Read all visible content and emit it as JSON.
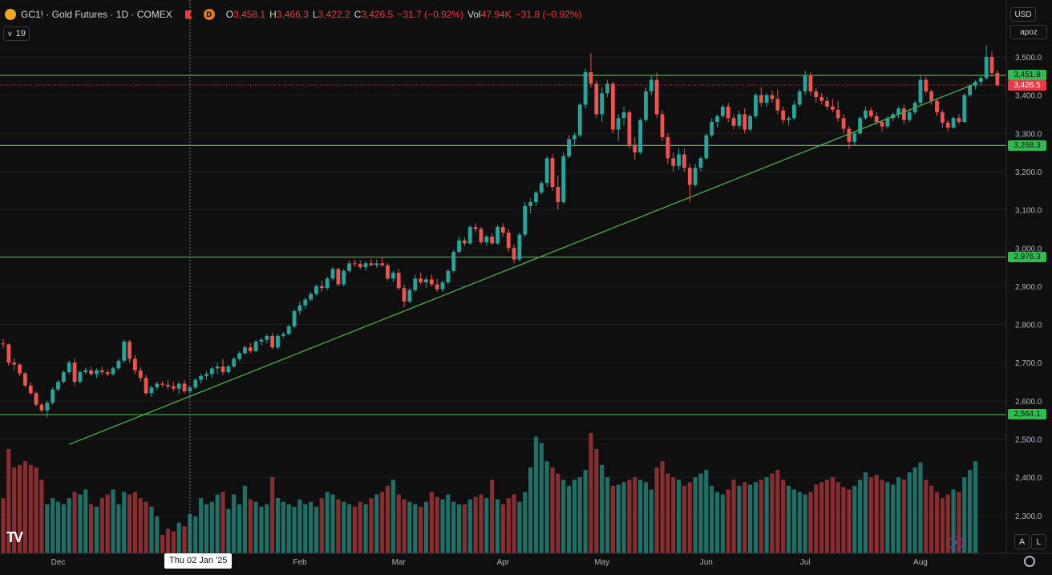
{
  "header": {
    "symbol": "GC1!",
    "name": "Gold Futures",
    "interval": "1D",
    "exchange": "COMEX",
    "title": "GC1! · Gold Futures · 1D · COMEX",
    "badge": "D",
    "ohlc": {
      "o_label": "O",
      "o": "3,458.1",
      "h_label": "H",
      "h": "3,466.3",
      "l_label": "L",
      "l": "3,422.2",
      "c_label": "C",
      "c": "3,426.5",
      "change": "−31.7 (−0.92%)",
      "vol_label": "Vol",
      "vol": "47.94K",
      "vol_change": "−31.8 (−0.92%)"
    },
    "indicators_count": "19"
  },
  "price_scale": {
    "currency": "USD",
    "mode": "apoz",
    "ticks": [
      {
        "label": "3,500.0",
        "value": 3500
      },
      {
        "label": "3,400.0",
        "value": 3400
      },
      {
        "label": "3,300.0",
        "value": 3300
      },
      {
        "label": "3,200.0",
        "value": 3200
      },
      {
        "label": "3,100.0",
        "value": 3100
      },
      {
        "label": "3,000.0",
        "value": 3000
      },
      {
        "label": "2,900.0",
        "value": 2900
      },
      {
        "label": "2,800.0",
        "value": 2800
      },
      {
        "label": "2,700.0",
        "value": 2700
      },
      {
        "label": "2,600.0",
        "value": 2600
      },
      {
        "label": "2,500.0",
        "value": 2500
      },
      {
        "label": "2,400.0",
        "value": 2400
      },
      {
        "label": "2,300.0",
        "value": 2300
      }
    ],
    "levels": [
      {
        "label": "3,451.8",
        "value": 3451.8
      },
      {
        "label": "3,268.3",
        "value": 3268.3
      },
      {
        "label": "2,976.3",
        "value": 2976.3
      },
      {
        "label": "2,564.1",
        "value": 2564.1
      }
    ],
    "last_price": {
      "label": "3,426.5",
      "value": 3426.5
    }
  },
  "time_axis": {
    "labels": [
      {
        "label": "Dec",
        "index": 10
      },
      {
        "label": "Feb",
        "index": 54
      },
      {
        "label": "Mar",
        "index": 72
      },
      {
        "label": "Apr",
        "index": 91
      },
      {
        "label": "May",
        "index": 109
      },
      {
        "label": "Jun",
        "index": 128
      },
      {
        "label": "Jul",
        "index": 146
      },
      {
        "label": "Aug",
        "index": 167
      }
    ],
    "crosshair_label": "Thu 02 Jan '25",
    "crosshair_index": 34
  },
  "trendline": {
    "start_index": 12,
    "start_value": 2486,
    "end_index": 177,
    "end_value": 3430
  },
  "chart_data": {
    "type": "candlestick",
    "candles": [
      [
        2750,
        2762,
        2738,
        2748
      ],
      [
        2748,
        2750,
        2692,
        2700
      ],
      [
        2700,
        2712,
        2680,
        2695
      ],
      [
        2695,
        2698,
        2665,
        2672
      ],
      [
        2672,
        2676,
        2635,
        2640
      ],
      [
        2640,
        2648,
        2615,
        2620
      ],
      [
        2620,
        2624,
        2585,
        2590
      ],
      [
        2590,
        2595,
        2570,
        2575
      ],
      [
        2575,
        2600,
        2556,
        2595
      ],
      [
        2595,
        2635,
        2590,
        2630
      ],
      [
        2630,
        2655,
        2625,
        2650
      ],
      [
        2650,
        2680,
        2645,
        2675
      ],
      [
        2675,
        2705,
        2670,
        2700
      ],
      [
        2700,
        2712,
        2640,
        2650
      ],
      [
        2650,
        2680,
        2645,
        2675
      ],
      [
        2675,
        2688,
        2670,
        2680
      ],
      [
        2680,
        2690,
        2665,
        2670
      ],
      [
        2670,
        2685,
        2660,
        2680
      ],
      [
        2680,
        2690,
        2668,
        2675
      ],
      [
        2675,
        2682,
        2665,
        2670
      ],
      [
        2670,
        2690,
        2665,
        2685
      ],
      [
        2685,
        2710,
        2680,
        2705
      ],
      [
        2705,
        2760,
        2700,
        2755
      ],
      [
        2755,
        2760,
        2700,
        2710
      ],
      [
        2710,
        2720,
        2670,
        2680
      ],
      [
        2680,
        2688,
        2650,
        2660
      ],
      [
        2660,
        2668,
        2615,
        2620
      ],
      [
        2620,
        2640,
        2610,
        2635
      ],
      [
        2635,
        2650,
        2628,
        2645
      ],
      [
        2645,
        2652,
        2635,
        2642
      ],
      [
        2642,
        2655,
        2630,
        2638
      ],
      [
        2638,
        2650,
        2625,
        2632
      ],
      [
        2632,
        2650,
        2618,
        2645
      ],
      [
        2645,
        2655,
        2620,
        2625
      ],
      [
        2625,
        2640,
        2618,
        2635
      ],
      [
        2635,
        2660,
        2630,
        2655
      ],
      [
        2655,
        2672,
        2645,
        2665
      ],
      [
        2665,
        2678,
        2655,
        2670
      ],
      [
        2670,
        2690,
        2660,
        2685
      ],
      [
        2685,
        2700,
        2670,
        2690
      ],
      [
        2690,
        2710,
        2668,
        2675
      ],
      [
        2675,
        2695,
        2670,
        2690
      ],
      [
        2690,
        2715,
        2685,
        2710
      ],
      [
        2710,
        2730,
        2705,
        2725
      ],
      [
        2725,
        2745,
        2720,
        2740
      ],
      [
        2740,
        2752,
        2725,
        2730
      ],
      [
        2730,
        2760,
        2728,
        2755
      ],
      [
        2755,
        2765,
        2745,
        2760
      ],
      [
        2760,
        2775,
        2750,
        2770
      ],
      [
        2770,
        2778,
        2735,
        2740
      ],
      [
        2740,
        2775,
        2735,
        2770
      ],
      [
        2770,
        2780,
        2765,
        2775
      ],
      [
        2775,
        2800,
        2772,
        2795
      ],
      [
        2795,
        2840,
        2790,
        2835
      ],
      [
        2835,
        2860,
        2825,
        2850
      ],
      [
        2850,
        2870,
        2840,
        2865
      ],
      [
        2865,
        2885,
        2860,
        2880
      ],
      [
        2880,
        2905,
        2875,
        2900
      ],
      [
        2900,
        2915,
        2885,
        2895
      ],
      [
        2895,
        2925,
        2890,
        2920
      ],
      [
        2920,
        2950,
        2915,
        2945
      ],
      [
        2945,
        2948,
        2900,
        2905
      ],
      [
        2905,
        2945,
        2900,
        2940
      ],
      [
        2940,
        2968,
        2935,
        2960
      ],
      [
        2960,
        2970,
        2950,
        2958
      ],
      [
        2958,
        2968,
        2945,
        2950
      ],
      [
        2950,
        2965,
        2940,
        2960
      ],
      [
        2960,
        2972,
        2952,
        2955
      ],
      [
        2955,
        2970,
        2948,
        2960
      ],
      [
        2960,
        2975,
        2950,
        2955
      ],
      [
        2955,
        2960,
        2915,
        2920
      ],
      [
        2920,
        2940,
        2910,
        2935
      ],
      [
        2935,
        2945,
        2890,
        2895
      ],
      [
        2895,
        2905,
        2845,
        2860
      ],
      [
        2860,
        2895,
        2855,
        2890
      ],
      [
        2890,
        2930,
        2885,
        2920
      ],
      [
        2920,
        2935,
        2905,
        2910
      ],
      [
        2910,
        2925,
        2895,
        2918
      ],
      [
        2918,
        2930,
        2900,
        2905
      ],
      [
        2905,
        2920,
        2885,
        2892
      ],
      [
        2892,
        2915,
        2885,
        2910
      ],
      [
        2910,
        2945,
        2905,
        2940
      ],
      [
        2940,
        2995,
        2935,
        2990
      ],
      [
        2990,
        3030,
        2985,
        3020
      ],
      [
        3020,
        3028,
        3005,
        3012
      ],
      [
        3012,
        3060,
        3008,
        3055
      ],
      [
        3055,
        3065,
        3040,
        3050
      ],
      [
        3050,
        3055,
        3010,
        3015
      ],
      [
        3015,
        3035,
        3005,
        3030
      ],
      [
        3030,
        3038,
        3008,
        3012
      ],
      [
        3012,
        3060,
        3008,
        3055
      ],
      [
        3055,
        3065,
        3030,
        3040
      ],
      [
        3040,
        3050,
        2990,
        3000
      ],
      [
        3000,
        3010,
        2960,
        2970
      ],
      [
        2970,
        3040,
        2965,
        3035
      ],
      [
        3035,
        3120,
        3030,
        3110
      ],
      [
        3110,
        3130,
        3090,
        3120
      ],
      [
        3120,
        3150,
        3110,
        3145
      ],
      [
        3145,
        3175,
        3140,
        3170
      ],
      [
        3170,
        3240,
        3160,
        3235
      ],
      [
        3235,
        3245,
        3150,
        3160
      ],
      [
        3160,
        3190,
        3100,
        3120
      ],
      [
        3120,
        3250,
        3115,
        3240
      ],
      [
        3240,
        3295,
        3235,
        3285
      ],
      [
        3285,
        3302,
        3270,
        3295
      ],
      [
        3295,
        3380,
        3290,
        3375
      ],
      [
        3375,
        3470,
        3365,
        3460
      ],
      [
        3460,
        3510,
        3420,
        3430
      ],
      [
        3430,
        3440,
        3340,
        3350
      ],
      [
        3350,
        3420,
        3330,
        3405
      ],
      [
        3405,
        3440,
        3395,
        3430
      ],
      [
        3430,
        3435,
        3300,
        3310
      ],
      [
        3310,
        3350,
        3280,
        3340
      ],
      [
        3340,
        3370,
        3320,
        3355
      ],
      [
        3355,
        3360,
        3260,
        3270
      ],
      [
        3270,
        3290,
        3230,
        3250
      ],
      [
        3250,
        3340,
        3245,
        3335
      ],
      [
        3335,
        3420,
        3330,
        3410
      ],
      [
        3410,
        3450,
        3400,
        3440
      ],
      [
        3440,
        3460,
        3340,
        3350
      ],
      [
        3350,
        3360,
        3280,
        3290
      ],
      [
        3290,
        3300,
        3220,
        3235
      ],
      [
        3235,
        3250,
        3200,
        3215
      ],
      [
        3215,
        3260,
        3205,
        3245
      ],
      [
        3245,
        3260,
        3200,
        3210
      ],
      [
        3210,
        3220,
        3120,
        3165
      ],
      [
        3165,
        3220,
        3160,
        3210
      ],
      [
        3210,
        3240,
        3200,
        3235
      ],
      [
        3235,
        3300,
        3230,
        3295
      ],
      [
        3295,
        3340,
        3290,
        3330
      ],
      [
        3330,
        3350,
        3315,
        3345
      ],
      [
        3345,
        3375,
        3340,
        3370
      ],
      [
        3370,
        3380,
        3330,
        3340
      ],
      [
        3340,
        3350,
        3310,
        3320
      ],
      [
        3320,
        3360,
        3312,
        3350
      ],
      [
        3350,
        3365,
        3300,
        3310
      ],
      [
        3310,
        3350,
        3305,
        3345
      ],
      [
        3345,
        3405,
        3340,
        3400
      ],
      [
        3400,
        3420,
        3370,
        3380
      ],
      [
        3380,
        3405,
        3370,
        3400
      ],
      [
        3400,
        3412,
        3380,
        3390
      ],
      [
        3390,
        3415,
        3350,
        3360
      ],
      [
        3360,
        3370,
        3325,
        3335
      ],
      [
        3335,
        3345,
        3320,
        3340
      ],
      [
        3340,
        3385,
        3335,
        3375
      ],
      [
        3375,
        3415,
        3370,
        3410
      ],
      [
        3410,
        3465,
        3400,
        3450
      ],
      [
        3450,
        3460,
        3400,
        3410
      ],
      [
        3410,
        3418,
        3380,
        3395
      ],
      [
        3395,
        3405,
        3375,
        3385
      ],
      [
        3385,
        3395,
        3362,
        3370
      ],
      [
        3370,
        3390,
        3355,
        3362
      ],
      [
        3362,
        3385,
        3330,
        3340
      ],
      [
        3340,
        3350,
        3300,
        3312
      ],
      [
        3312,
        3320,
        3260,
        3278
      ],
      [
        3278,
        3305,
        3270,
        3300
      ],
      [
        3300,
        3345,
        3295,
        3340
      ],
      [
        3340,
        3370,
        3335,
        3360
      ],
      [
        3360,
        3368,
        3340,
        3345
      ],
      [
        3345,
        3355,
        3322,
        3330
      ],
      [
        3330,
        3335,
        3305,
        3318
      ],
      [
        3318,
        3345,
        3312,
        3340
      ],
      [
        3340,
        3355,
        3332,
        3350
      ],
      [
        3350,
        3370,
        3340,
        3365
      ],
      [
        3365,
        3375,
        3325,
        3335
      ],
      [
        3335,
        3362,
        3330,
        3355
      ],
      [
        3355,
        3385,
        3350,
        3380
      ],
      [
        3380,
        3450,
        3375,
        3440
      ],
      [
        3440,
        3448,
        3405,
        3410
      ],
      [
        3410,
        3415,
        3375,
        3385
      ],
      [
        3385,
        3392,
        3345,
        3355
      ],
      [
        3355,
        3362,
        3315,
        3328
      ],
      [
        3328,
        3335,
        3305,
        3315
      ],
      [
        3315,
        3345,
        3312,
        3340
      ],
      [
        3340,
        3350,
        3325,
        3330
      ],
      [
        3330,
        3405,
        3328,
        3400
      ],
      [
        3400,
        3430,
        3395,
        3425
      ],
      [
        3425,
        3440,
        3415,
        3435
      ],
      [
        3435,
        3450,
        3425,
        3445
      ],
      [
        3445,
        3530,
        3440,
        3500
      ],
      [
        3500,
        3515,
        3448,
        3458
      ],
      [
        3458,
        3466,
        3422,
        3426
      ]
    ],
    "volume": [
      45,
      85,
      70,
      72,
      75,
      72,
      70,
      60,
      40,
      45,
      42,
      40,
      45,
      50,
      48,
      52,
      40,
      38,
      45,
      48,
      52,
      40,
      50,
      48,
      50,
      45,
      42,
      38,
      30,
      15,
      20,
      18,
      25,
      22,
      32,
      30,
      45,
      40,
      42,
      48,
      50,
      36,
      48,
      40,
      55,
      44,
      42,
      38,
      40,
      62,
      45,
      42,
      40,
      38,
      44,
      40,
      42,
      38,
      45,
      50,
      48,
      44,
      42,
      40,
      38,
      42,
      40,
      45,
      48,
      50,
      55,
      60,
      48,
      44,
      42,
      40,
      38,
      42,
      50,
      46,
      44,
      48,
      42,
      40,
      40,
      44,
      46,
      48,
      45,
      60,
      44,
      40,
      45,
      48,
      42,
      50,
      70,
      95,
      90,
      75,
      70,
      65,
      60,
      55,
      60,
      62,
      68,
      98,
      85,
      72,
      62,
      55,
      56,
      58,
      60,
      62,
      60,
      58,
      52,
      70,
      75,
      65,
      62,
      60,
      55,
      58,
      62,
      65,
      68,
      55,
      50,
      48,
      52,
      60,
      55,
      58,
      56,
      58,
      60,
      62,
      65,
      68,
      60,
      55,
      52,
      50,
      48,
      50,
      56,
      58,
      60,
      62,
      58,
      54,
      52,
      55,
      60,
      66,
      62,
      64,
      60,
      58,
      56,
      62,
      60,
      66,
      70,
      74,
      60,
      55,
      50,
      45,
      48,
      52,
      50,
      62,
      68,
      75
    ]
  }
}
